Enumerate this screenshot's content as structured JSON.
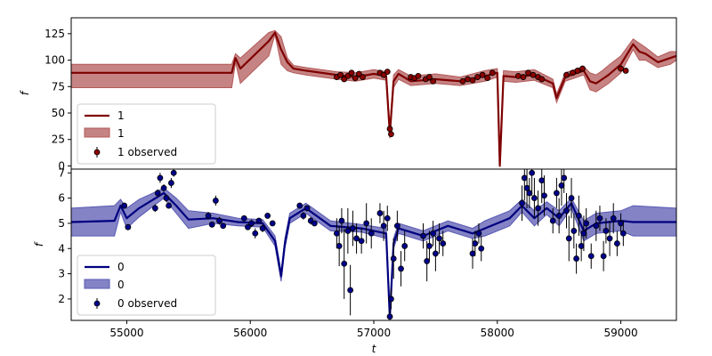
{
  "chart_data": [
    {
      "type": "line",
      "panel": "top",
      "xlabel": "",
      "ylabel": "f",
      "xlim": [
        54550,
        59450
      ],
      "ylim": [
        -3,
        140
      ],
      "yticks": [
        0,
        25,
        50,
        75,
        100,
        125
      ],
      "xticks": [],
      "colors": {
        "line": "#7f0000",
        "band": "#b35a5a",
        "points": "#8b0000"
      },
      "legend": {
        "placement": "lower-left",
        "entries": [
          "1",
          "1",
          "1 observed"
        ]
      },
      "series": [
        {
          "name": "1",
          "kind": "model",
          "x": [
            54550,
            55850,
            55880,
            55920,
            56150,
            56200,
            56250,
            56300,
            56350,
            56450,
            56700,
            56850,
            57000,
            57100,
            57130,
            57160,
            57200,
            57300,
            57500,
            57700,
            57900,
            58000,
            58020,
            58050,
            58150,
            58300,
            58450,
            58480,
            58550,
            58700,
            58750,
            58800,
            58850,
            58900,
            59000,
            59100,
            59150,
            59200,
            59300,
            59400,
            59450
          ],
          "y": [
            88,
            88,
            102,
            92,
            118,
            126,
            110,
            98,
            92,
            90,
            86,
            84,
            87,
            85,
            30,
            80,
            87,
            80,
            82,
            80,
            85,
            88,
            0,
            85,
            84,
            86,
            78,
            64,
            84,
            90,
            80,
            78,
            82,
            86,
            96,
            115,
            108,
            106,
            98,
            102,
            104
          ],
          "upper": [
            96,
            96,
            106,
            102,
            126,
            128,
            122,
            102,
            95,
            93,
            89,
            88,
            91,
            89,
            36,
            86,
            91,
            85,
            87,
            84,
            90,
            92,
            5,
            90,
            89,
            91,
            82,
            68,
            88,
            94,
            88,
            86,
            90,
            95,
            104,
            120,
            116,
            112,
            103,
            108,
            108
          ],
          "lower": [
            74,
            74,
            98,
            78,
            104,
            124,
            96,
            90,
            88,
            86,
            82,
            80,
            83,
            81,
            26,
            74,
            82,
            76,
            78,
            76,
            80,
            84,
            0,
            80,
            79,
            81,
            74,
            60,
            80,
            86,
            72,
            70,
            74,
            78,
            88,
            110,
            100,
            100,
            93,
            96,
            100
          ]
        },
        {
          "name": "1 observed",
          "kind": "observed",
          "x": [
            56700,
            56730,
            56760,
            56790,
            56820,
            56850,
            56880,
            56910,
            57050,
            57080,
            57110,
            57130,
            57140,
            57300,
            57330,
            57360,
            57420,
            57450,
            57480,
            57720,
            57760,
            57800,
            57840,
            57880,
            57920,
            57960,
            58170,
            58210,
            58250,
            58290,
            58330,
            58360,
            58560,
            58610,
            58650,
            58690,
            59000,
            59040
          ],
          "y": [
            84,
            86,
            82,
            85,
            88,
            83,
            87,
            84,
            88,
            86,
            89,
            35,
            30,
            84,
            83,
            85,
            82,
            84,
            80,
            80,
            82,
            81,
            84,
            86,
            83,
            88,
            85,
            84,
            88,
            86,
            84,
            82,
            86,
            88,
            90,
            92,
            92,
            90
          ]
        }
      ]
    },
    {
      "type": "line",
      "panel": "bottom",
      "xlabel": "t",
      "ylabel": "f",
      "xlim": [
        54550,
        59450
      ],
      "ylim": [
        1.15,
        7.15
      ],
      "yticks": [
        2,
        3,
        4,
        5,
        6,
        7
      ],
      "xticks": [
        55000,
        56000,
        57000,
        58000,
        59000
      ],
      "colors": {
        "line": "#00007f",
        "band": "#5a5ab3",
        "points": "#00008b"
      },
      "legend": {
        "placement": "lower-left",
        "entries": [
          "0",
          "0",
          "0 observed"
        ]
      },
      "series": [
        {
          "name": "0",
          "kind": "model",
          "x": [
            54550,
            54900,
            54950,
            55000,
            55100,
            55300,
            55400,
            55500,
            55700,
            55900,
            56100,
            56200,
            56250,
            56280,
            56320,
            56450,
            56650,
            56900,
            57100,
            57130,
            57160,
            57200,
            57400,
            57600,
            57800,
            57900,
            58100,
            58200,
            58300,
            58400,
            58500,
            58600,
            58700,
            58800,
            59000,
            59100,
            59450
          ],
          "y": [
            5.05,
            5.1,
            5.7,
            5.2,
            5.6,
            6.2,
            5.7,
            5.15,
            5.2,
            5.05,
            5.0,
            4.3,
            2.9,
            4.2,
            5.2,
            5.6,
            4.9,
            4.8,
            4.6,
            1.25,
            4.2,
            4.8,
            4.5,
            4.9,
            4.6,
            4.8,
            5.2,
            5.7,
            5.2,
            5.6,
            5.2,
            5.8,
            4.7,
            5.0,
            5.1,
            5.05,
            5.05
          ],
          "upper": [
            5.6,
            5.7,
            5.95,
            5.6,
            5.95,
            6.4,
            6.0,
            5.5,
            5.4,
            5.2,
            5.15,
            4.5,
            3.1,
            4.4,
            5.4,
            5.8,
            5.1,
            4.95,
            4.8,
            1.45,
            4.4,
            5.0,
            4.7,
            5.1,
            4.8,
            5.1,
            5.5,
            5.95,
            5.5,
            5.85,
            5.5,
            6.0,
            5.1,
            5.4,
            5.5,
            5.7,
            5.6
          ],
          "lower": [
            4.5,
            4.5,
            5.45,
            4.8,
            5.25,
            6.0,
            5.4,
            4.8,
            5.0,
            4.9,
            4.85,
            4.1,
            2.7,
            4.0,
            5.0,
            5.4,
            4.7,
            4.65,
            4.4,
            1.15,
            4.0,
            4.6,
            4.3,
            4.7,
            4.4,
            4.5,
            4.9,
            5.45,
            4.9,
            5.35,
            4.9,
            5.6,
            4.3,
            4.6,
            4.7,
            4.5,
            4.5
          ]
        },
        {
          "name": "0 observed",
          "kind": "observed",
          "x": [
            54980,
            55010,
            55230,
            55250,
            55270,
            55300,
            55320,
            55340,
            55360,
            55380,
            55660,
            55690,
            55720,
            55750,
            55780,
            55950,
            55980,
            56010,
            56040,
            56070,
            56100,
            56140,
            56180,
            56400,
            56430,
            56460,
            56490,
            56520,
            56700,
            56720,
            56740,
            56760,
            56790,
            56810,
            56830,
            56860,
            56900,
            56940,
            56980,
            57050,
            57080,
            57110,
            57130,
            57140,
            57160,
            57190,
            57220,
            57250,
            57400,
            57430,
            57450,
            57480,
            57500,
            57530,
            57560,
            57800,
            57820,
            57850,
            57870,
            58200,
            58220,
            58240,
            58260,
            58280,
            58300,
            58330,
            58360,
            58380,
            58450,
            58480,
            58500,
            58520,
            58540,
            58560,
            58580,
            58600,
            58620,
            58640,
            58660,
            58680,
            58700,
            58720,
            58760,
            58800,
            58830,
            58860,
            58880,
            58910,
            58940,
            58970,
            59000,
            59020
          ],
          "y": [
            5.7,
            4.85,
            5.6,
            6.2,
            6.8,
            6.4,
            6.0,
            5.7,
            6.6,
            7.0,
            5.3,
            4.95,
            5.9,
            5.1,
            4.9,
            5.2,
            4.85,
            5.0,
            4.6,
            5.1,
            4.8,
            5.3,
            5.0,
            5.7,
            5.3,
            5.6,
            5.1,
            5.0,
            4.6,
            4.1,
            5.1,
            3.4,
            4.7,
            2.35,
            4.8,
            4.4,
            4.3,
            5.0,
            4.6,
            5.4,
            4.9,
            5.2,
            1.3,
            2.0,
            3.6,
            4.9,
            3.2,
            4.1,
            4.5,
            3.5,
            4.1,
            4.6,
            3.8,
            4.4,
            4.2,
            3.8,
            4.2,
            4.6,
            4.0,
            5.8,
            6.8,
            6.4,
            6.2,
            7.0,
            6.0,
            5.6,
            6.7,
            6.1,
            5.1,
            6.2,
            5.3,
            6.5,
            6.8,
            5.5,
            4.4,
            6.0,
            4.7,
            3.6,
            5.3,
            4.1,
            4.6,
            5.0,
            3.7,
            4.9,
            5.2,
            3.7,
            4.7,
            4.4,
            5.2,
            4.2,
            5.0,
            4.6
          ],
          "err": [
            0.1,
            0.1,
            0.15,
            0.15,
            0.2,
            0.15,
            0.15,
            0.1,
            0.2,
            0.15,
            0.15,
            0.1,
            0.2,
            0.15,
            0.1,
            0.1,
            0.1,
            0.15,
            0.2,
            0.1,
            0.15,
            0.1,
            0.1,
            0.1,
            0.15,
            0.1,
            0.15,
            0.1,
            0.6,
            0.8,
            0.5,
            1.4,
            0.9,
            1.0,
            0.7,
            0.6,
            0.5,
            0.8,
            0.6,
            0.4,
            0.6,
            0.5,
            0.3,
            0.4,
            0.8,
            0.6,
            0.7,
            0.6,
            0.5,
            0.8,
            0.6,
            0.5,
            0.7,
            0.6,
            0.5,
            0.6,
            0.5,
            0.4,
            0.5,
            0.7,
            0.9,
            0.8,
            0.6,
            0.9,
            0.8,
            0.7,
            0.9,
            0.8,
            0.5,
            0.6,
            0.7,
            0.8,
            0.6,
            0.7,
            0.9,
            0.8,
            0.7,
            0.6,
            0.8,
            0.6,
            0.7,
            0.6,
            0.5,
            0.6,
            0.5,
            0.6,
            0.5,
            0.7,
            0.6,
            0.5,
            0.4,
            0.5
          ]
        }
      ]
    }
  ]
}
